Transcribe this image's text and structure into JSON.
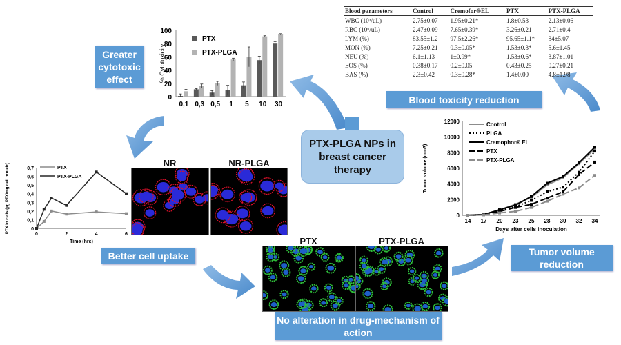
{
  "center_title": "PTX-PLGA NPs in breast cancer therapy",
  "callouts": {
    "cytotoxic": "Greater cytotoxic effect",
    "blood": "Blood toxicity reduction",
    "uptake": "Better cell uptake",
    "mechanism": "No alteration in drug-mechanism of action",
    "tumor": "Tumor volume reduction"
  },
  "table": {
    "headers": [
      "Blood parameters",
      "Control",
      "Cremofor®EL",
      "PTX",
      "PTX-PLGA"
    ],
    "rows": [
      [
        "WBC (10³/uL)",
        "2.75±0.07",
        "1.95±0.21*",
        "1.8±0.53",
        "2.13±0.06"
      ],
      [
        "RBC (10⁶/uL)",
        "2.47±0.09",
        "7.65±0.39*",
        "3.26±0.21",
        "2.71±0.4"
      ],
      [
        "LYM (%)",
        "83.55±1.2",
        "97.5±2.26*",
        "95.65±1.1*",
        "84±5.07"
      ],
      [
        "MON (%)",
        "7.25±0.21",
        "0.3±0.05*",
        "1.53±0.3*",
        "5.6±1.45"
      ],
      [
        "NEU (%)",
        "6.1±1.13",
        "1±0.99*",
        "1.53±0.6*",
        "3.87±1.01"
      ],
      [
        "EOS (%)",
        "0.38±0.17",
        "0.2±0.05",
        "0.43±0.25",
        "0.27±0.21"
      ],
      [
        "BAS (%)",
        "2.3±0.42",
        "0.3±0.28*",
        "1.4±0.00",
        "4.8±1.98"
      ]
    ]
  },
  "images": {
    "nr": "NR",
    "nr_plga": "NR-PLGA",
    "ptx": "PTX",
    "ptx_plga": "PTX-PLGA"
  },
  "chart_data": [
    {
      "type": "bar",
      "title": "",
      "ylabel": "% Cytotoxicity",
      "xlabel": "",
      "ylim": [
        0,
        100
      ],
      "yticks": [
        "0",
        "20",
        "40",
        "60",
        "80",
        "100"
      ],
      "categories": [
        "0,1",
        "0,3",
        "0,5",
        "1",
        "5",
        "10",
        "30"
      ],
      "legend_position": "top-left",
      "series": [
        {
          "name": "PTX",
          "color": "#595959",
          "values": [
            1,
            11,
            6,
            10,
            17,
            55,
            80
          ],
          "errors": [
            3,
            1,
            3,
            7,
            5,
            6,
            3
          ]
        },
        {
          "name": "PTX-PLGA",
          "color": "#b3b3b3",
          "values": [
            8,
            16,
            20,
            56,
            60,
            91,
            94
          ],
          "errors": [
            3,
            3,
            3,
            2,
            15,
            1,
            1
          ]
        }
      ]
    },
    {
      "type": "line",
      "xlabel": "Time (hrs)",
      "ylabel": "PTX in cells (µg PTX/mg cell protein)",
      "ylim": [
        0,
        0.7
      ],
      "xlim": [
        0,
        6
      ],
      "yticks": [
        "0",
        "0,1",
        "0,2",
        "0,3",
        "0,4",
        "0,5",
        "0,6",
        "0,7"
      ],
      "xticks": [
        "0",
        "2",
        "4",
        "6"
      ],
      "legend_position": "top-left",
      "x": [
        0,
        0.5,
        1,
        2,
        4,
        6
      ],
      "series": [
        {
          "name": "PTX",
          "color": "#8c8c8c",
          "values": [
            0,
            0.08,
            0.2,
            0.165,
            0.19,
            0.17
          ]
        },
        {
          "name": "PTX-PLGA",
          "color": "#262626",
          "values": [
            0,
            0.22,
            0.35,
            0.265,
            0.65,
            0.4
          ]
        }
      ]
    },
    {
      "type": "line",
      "xlabel": "Days after cells inoculation",
      "ylabel": "Tumor volume (mm3)",
      "ylim": [
        0,
        12000
      ],
      "yticks": [
        "0",
        "2000",
        "4000",
        "6000",
        "8000",
        "10000",
        "12000"
      ],
      "categories": [
        "14",
        "17",
        "20",
        "23",
        "25",
        "28",
        "30",
        "32",
        "34"
      ],
      "legend_position": "top-left",
      "series": [
        {
          "name": "Control",
          "color": "#8c8c8c",
          "dash": "",
          "values": [
            0,
            100,
            700,
            1400,
            2300,
            3900,
            4800,
            6600,
            8500
          ]
        },
        {
          "name": "PLGA",
          "color": "#000000",
          "dash": "2,3",
          "values": [
            0,
            100,
            600,
            1100,
            1900,
            3000,
            3600,
            5500,
            8200
          ]
        },
        {
          "name": "Cremophor® EL",
          "color": "#000000",
          "dash": "",
          "values": [
            0,
            100,
            700,
            1300,
            2400,
            4100,
            4950,
            6700,
            8700
          ]
        },
        {
          "name": "PTX",
          "color": "#000000",
          "dash": "8,4",
          "values": [
            0,
            100,
            500,
            1000,
            1400,
            2200,
            3000,
            5200,
            6800
          ]
        },
        {
          "name": "PTX-PLGA",
          "color": "#8c8c8c",
          "dash": "8,4",
          "values": [
            0,
            50,
            300,
            500,
            1000,
            1800,
            2700,
            3500,
            5100
          ]
        }
      ]
    }
  ]
}
